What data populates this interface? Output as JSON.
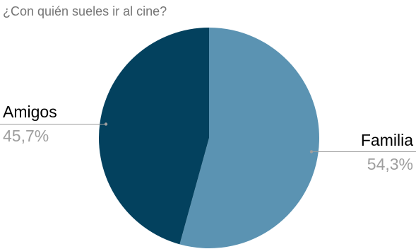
{
  "chart_data": {
    "type": "pie",
    "title": "¿Con quién sueles ir al cine?",
    "slices": [
      {
        "label": "Familia",
        "value": 54.3,
        "display": "54,3%",
        "color": "#5b93b2"
      },
      {
        "label": "Amigos",
        "value": 45.7,
        "display": "45,7%",
        "color": "#03415e"
      }
    ],
    "start_angle": "12 o'clock",
    "direction": "clockwise",
    "legend": "none"
  }
}
